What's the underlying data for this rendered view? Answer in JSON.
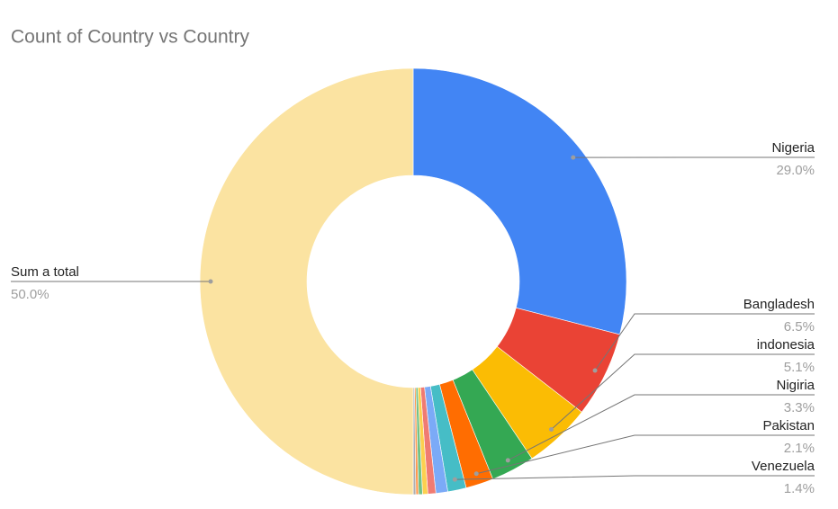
{
  "chart_data": {
    "type": "donut",
    "title": "Count of Country vs Country",
    "categories": [
      "Nigeria",
      "Bangladesh",
      "indonesia",
      "Nigiria",
      "Pakistan",
      "Venezuela",
      null,
      null,
      null,
      null,
      null,
      null,
      "Sum a total"
    ],
    "values": [
      29.0,
      6.5,
      5.1,
      3.3,
      2.1,
      1.4,
      0.9,
      0.6,
      0.4,
      0.3,
      0.2,
      0.2,
      50.0
    ],
    "value_labels": [
      "29.0%",
      "6.5%",
      "5.1%",
      "3.3%",
      "2.1%",
      "1.4%",
      null,
      null,
      null,
      null,
      null,
      null,
      "50.0%"
    ],
    "colors": [
      "#4285f4",
      "#ea4335",
      "#fbbc04",
      "#34a853",
      "#ff6d01",
      "#46bdc6",
      "#7baaf7",
      "#f07b72",
      "#fcd04f",
      "#71c287",
      "#ff994d",
      "#b0b0b0",
      "#fbe3a1"
    ]
  }
}
